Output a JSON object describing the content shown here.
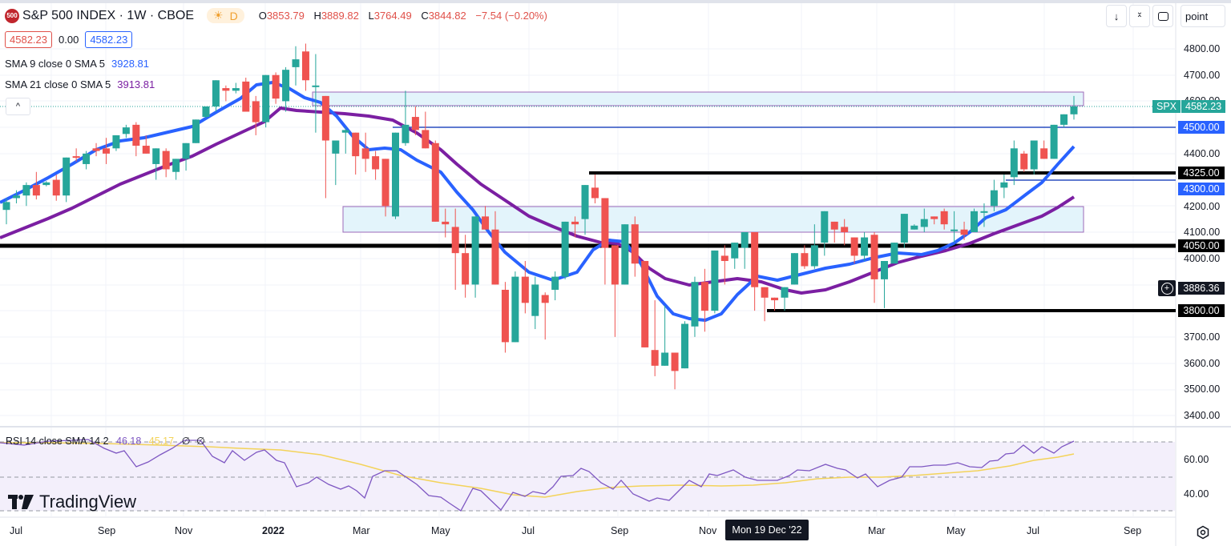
{
  "header": {
    "symbol_logo": "500",
    "title": "S&P 500 INDEX · 1W · CBOE",
    "session_icon": "sun-icon",
    "session_label": "D",
    "ohlc": {
      "o_label": "O",
      "o": "3853.79",
      "h_label": "H",
      "h": "3889.82",
      "l_label": "L",
      "l": "3764.49",
      "c_label": "C",
      "c": "3844.82",
      "change": "−7.54 (−0.20%)"
    },
    "bid": "4582.23",
    "spread": "0.00",
    "ask": "4582.23"
  },
  "indicators": [
    {
      "label": "SMA 9 close 0 SMA 5",
      "value": "3928.81",
      "color": "#2962ff"
    },
    {
      "label": "SMA 21 close 0 SMA 5",
      "value": "3913.81",
      "color": "#7b1fa2"
    }
  ],
  "toolbar": {
    "scroll_down_icon": "↓",
    "collapse_icon": "⌄⌃",
    "fullscreen_icon": "fullscreen-icon",
    "scale_mode": "point",
    "collapse_legend": "^"
  },
  "price_axis": {
    "labels": [
      "4800.00",
      "4700.00",
      "4600.00",
      "4400.00",
      "4200.00",
      "4100.00",
      "4000.00",
      "3700.00",
      "3600.00",
      "3500.00",
      "3400.00"
    ],
    "tags": [
      {
        "value": "4500.00",
        "color": "#2962ff"
      },
      {
        "value": "4325.00",
        "color": "#000000"
      },
      {
        "value": "4300.00",
        "color": "#2962ff"
      },
      {
        "value": "4050.00",
        "color": "#000000"
      },
      {
        "value": "3800.00",
        "color": "#000000"
      }
    ],
    "crosshair_value": "3886.36",
    "last_price_symbol": "SPX",
    "last_price": "4582.23"
  },
  "rsi": {
    "label": "RSI 14 close SMA 14 2",
    "rsi_value": "46.18",
    "sma_value": "45.17",
    "extra1": "∅",
    "extra2": "∅",
    "axis_labels": [
      "60.00",
      "40.00"
    ]
  },
  "time_axis": {
    "labels": [
      "Jul",
      "Sep",
      "Nov",
      "2022",
      "Mar",
      "May",
      "Jul",
      "Sep",
      "Nov",
      "Mar",
      "May",
      "Jul",
      "Sep"
    ],
    "crosshair_date": "Mon 19 Dec '22"
  },
  "branding": {
    "logo_text": "TradingView"
  },
  "colors": {
    "up": "#26a69a",
    "down": "#ef5350",
    "sma9": "#2962ff",
    "sma21": "#7b1fa2",
    "rsi": "#7e57c2",
    "rsi_sma": "#f3d35a",
    "zone_fill": "#e3f4fb",
    "zone_border": "#9c6ab8"
  },
  "chart_data": {
    "type": "candlestick",
    "title": "S&P 500 INDEX · 1W · CBOE",
    "price_range": [
      3350,
      4850
    ],
    "horizontal_levels": [
      4500,
      4325,
      4300,
      4050,
      3800
    ],
    "zones": [
      {
        "from": 4575,
        "to": 4630
      },
      {
        "from": 4105,
        "to": 4200
      }
    ],
    "candles": [
      [
        4185,
        4230,
        4130,
        4215
      ],
      [
        4230,
        4260,
        4210,
        4240
      ],
      [
        4240,
        4290,
        4200,
        4280
      ],
      [
        4280,
        4330,
        4225,
        4240
      ],
      [
        4280,
        4295,
        4275,
        4290
      ],
      [
        4300,
        4320,
        4220,
        4240
      ],
      [
        4240,
        4365,
        4215,
        4385
      ],
      [
        4390,
        4420,
        4370,
        4385
      ],
      [
        4360,
        4410,
        4340,
        4400
      ],
      [
        4420,
        4440,
        4390,
        4410
      ],
      [
        4420,
        4460,
        4360,
        4400
      ],
      [
        4420,
        4465,
        4410,
        4470
      ],
      [
        4475,
        4510,
        4460,
        4500
      ],
      [
        4510,
        4520,
        4390,
        4430
      ],
      [
        4430,
        4470,
        4400,
        4400
      ],
      [
        4360,
        4410,
        4300,
        4420
      ],
      [
        4410,
        4420,
        4310,
        4340
      ],
      [
        4330,
        4380,
        4300,
        4380
      ],
      [
        4380,
        4410,
        4335,
        4440
      ],
      [
        4440,
        4520,
        4440,
        4530
      ],
      [
        4540,
        4580,
        4535,
        4580
      ],
      [
        4580,
        4665,
        4560,
        4680
      ],
      [
        4650,
        4660,
        4600,
        4640
      ],
      [
        4640,
        4670,
        4630,
        4650
      ],
      [
        4675,
        4690,
        4560,
        4560
      ],
      [
        4600,
        4620,
        4470,
        4520
      ],
      [
        4520,
        4620,
        4500,
        4700
      ],
      [
        4700,
        4710,
        4590,
        4610
      ],
      [
        4600,
        4730,
        4560,
        4720
      ],
      [
        4730,
        4810,
        4660,
        4760
      ],
      [
        4790,
        4820,
        4640,
        4680
      ],
      [
        4660,
        4780,
        4480,
        4660
      ],
      [
        4620,
        4530,
        4230,
        4450
      ],
      [
        4400,
        4440,
        4280,
        4450
      ],
      [
        4480,
        4500,
        4400,
        4490
      ],
      [
        4480,
        4440,
        4320,
        4390
      ],
      [
        4420,
        4480,
        4330,
        4380
      ],
      [
        4390,
        4410,
        4300,
        4340
      ],
      [
        4380,
        4370,
        4160,
        4200
      ],
      [
        4160,
        4390,
        4150,
        4480
      ],
      [
        4440,
        4640,
        4430,
        4510
      ],
      [
        4540,
        4580,
        4470,
        4490
      ],
      [
        4490,
        4560,
        4430,
        4420
      ],
      [
        4440,
        4450,
        4180,
        4140
      ],
      [
        4140,
        4190,
        4080,
        4130
      ],
      [
        4120,
        4190,
        3880,
        4020
      ],
      [
        4020,
        4090,
        3850,
        3900
      ],
      [
        3900,
        4120,
        3850,
        4160
      ],
      [
        4160,
        4200,
        4120,
        4110
      ],
      [
        4110,
        4180,
        3900,
        3900
      ],
      [
        3880,
        3910,
        3640,
        3680
      ],
      [
        3680,
        3950,
        3710,
        3930
      ],
      [
        3930,
        3990,
        3790,
        3830
      ],
      [
        3780,
        3930,
        3730,
        3900
      ],
      [
        3860,
        3870,
        3690,
        3830
      ],
      [
        3880,
        3950,
        3840,
        3930
      ],
      [
        3930,
        4120,
        3920,
        4140
      ],
      [
        4140,
        4160,
        4080,
        4130
      ],
      [
        4150,
        4220,
        4090,
        4280
      ],
      [
        4270,
        4320,
        4210,
        4230
      ],
      [
        4230,
        4130,
        3900,
        4040
      ],
      [
        4050,
        4050,
        3700,
        3900
      ],
      [
        3900,
        4080,
        3920,
        4130
      ],
      [
        4130,
        4160,
        3930,
        3980
      ],
      [
        3990,
        3990,
        3660,
        3660
      ],
      [
        3650,
        3840,
        3550,
        3590
      ],
      [
        3590,
        3820,
        3600,
        3640
      ],
      [
        3640,
        3630,
        3500,
        3570
      ],
      [
        3580,
        3760,
        3580,
        3750
      ],
      [
        3740,
        3930,
        3700,
        3910
      ],
      [
        3910,
        3960,
        3720,
        3800
      ],
      [
        3800,
        4020,
        3790,
        4030
      ],
      [
        4010,
        4050,
        3900,
        3990
      ],
      [
        4000,
        4030,
        3960,
        4060
      ],
      [
        4040,
        4080,
        3960,
        4100
      ],
      [
        4100,
        4100,
        3800,
        3890
      ],
      [
        3890,
        3860,
        3760,
        3850
      ],
      [
        3850,
        3850,
        3800,
        3840
      ],
      [
        3850,
        3890,
        3800,
        3890
      ],
      [
        3900,
        4000,
        3910,
        4020
      ],
      [
        4020,
        4050,
        3960,
        3970
      ],
      [
        3970,
        4130,
        3960,
        4050
      ],
      [
        4060,
        4110,
        4010,
        4180
      ],
      [
        4140,
        4140,
        4060,
        4110
      ],
      [
        4120,
        4150,
        4050,
        4100
      ],
      [
        4080,
        4080,
        3980,
        4010
      ],
      [
        4010,
        4100,
        3990,
        4080
      ],
      [
        4090,
        4100,
        3830,
        3920
      ],
      [
        3920,
        3970,
        3810,
        3990
      ],
      [
        3980,
        4040,
        3980,
        4060
      ],
      [
        4060,
        4160,
        4040,
        4170
      ],
      [
        4110,
        4130,
        4120,
        4125
      ],
      [
        4120,
        4190,
        4100,
        4150
      ],
      [
        4160,
        4150,
        4130,
        4150
      ],
      [
        4180,
        4190,
        4110,
        4130
      ],
      [
        4110,
        4180,
        4060,
        4110
      ],
      [
        4110,
        4140,
        4070,
        4090
      ],
      [
        4100,
        4190,
        4100,
        4180
      ],
      [
        4180,
        4210,
        4120,
        4180
      ],
      [
        4200,
        4300,
        4180,
        4260
      ],
      [
        4270,
        4320,
        4230,
        4290
      ],
      [
        4310,
        4450,
        4280,
        4420
      ],
      [
        4400,
        4410,
        4330,
        4340
      ],
      [
        4340,
        4450,
        4320,
        4450
      ],
      [
        4420,
        4450,
        4390,
        4380
      ],
      [
        4380,
        4510,
        4380,
        4510
      ],
      [
        4510,
        4520,
        4500,
        4550
      ],
      [
        4550,
        4620,
        4530,
        4580
      ]
    ]
  }
}
